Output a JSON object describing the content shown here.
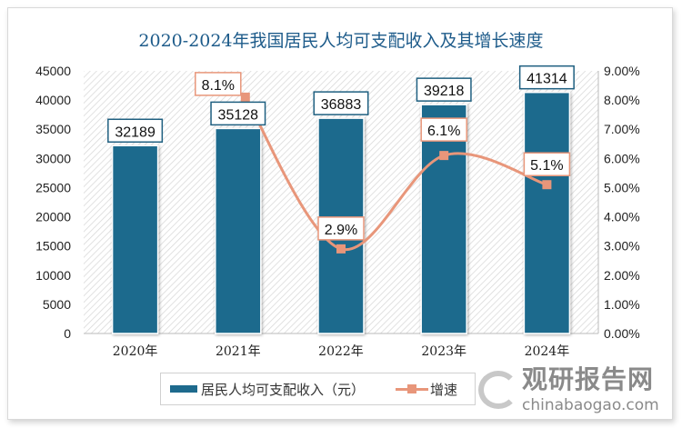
{
  "chart_data": {
    "type": "bar+line",
    "title": "2020-2024年我国居民人均可支配收入及其增长速度",
    "categories": [
      "2020年",
      "2021年",
      "2022年",
      "2023年",
      "2024年"
    ],
    "series": [
      {
        "name": "居民人均可支配收入（元）",
        "type": "bar",
        "axis": "left",
        "values": [
          32189,
          35128,
          36883,
          39218,
          41314
        ],
        "labels": [
          "32189",
          "35128",
          "36883",
          "39218",
          "41314"
        ],
        "color": "#1e6a8d"
      },
      {
        "name": "增速",
        "type": "line",
        "axis": "right",
        "values": [
          null,
          8.1,
          2.9,
          6.1,
          5.1
        ],
        "labels": [
          null,
          "8.1%",
          "2.9%",
          "6.1%",
          "5.1%"
        ],
        "color": "#e8967a"
      }
    ],
    "y_left": {
      "range": [
        0,
        45000
      ],
      "ticks": [
        "0",
        "5000",
        "10000",
        "15000",
        "20000",
        "25000",
        "30000",
        "35000",
        "40000",
        "45000"
      ]
    },
    "y_right": {
      "range": [
        0,
        9
      ],
      "ticks": [
        "0.00%",
        "1.00%",
        "2.00%",
        "3.00%",
        "4.00%",
        "5.00%",
        "6.00%",
        "7.00%",
        "8.00%",
        "9.00%"
      ]
    },
    "legend": "bottom",
    "grid": false
  },
  "watermark": {
    "cn": "观研报告网",
    "en": "chinabaogao.com"
  }
}
